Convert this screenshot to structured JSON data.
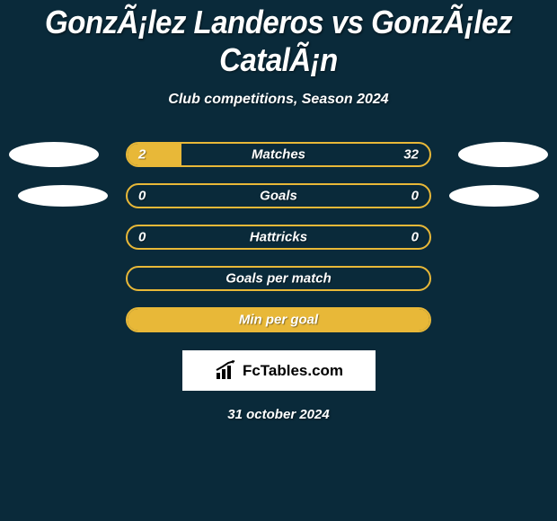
{
  "title": "GonzÃ¡lez Landeros vs GonzÃ¡lez CatalÃ¡n",
  "subtitle": "Club competitions, Season 2024",
  "stats": [
    {
      "label": "Matches",
      "left_value": "2",
      "right_value": "32",
      "left_fill_pct": 18,
      "right_fill_pct": 0,
      "show_left_oval": true,
      "show_right_oval": true,
      "oval_small": false,
      "bar_border": "#e8b838",
      "fill_color": "#e8b838"
    },
    {
      "label": "Goals",
      "left_value": "0",
      "right_value": "0",
      "left_fill_pct": 0,
      "right_fill_pct": 0,
      "show_left_oval": true,
      "show_right_oval": true,
      "oval_small": true,
      "bar_border": "#e8b838",
      "fill_color": "#e8b838"
    },
    {
      "label": "Hattricks",
      "left_value": "0",
      "right_value": "0",
      "left_fill_pct": 0,
      "right_fill_pct": 0,
      "show_left_oval": false,
      "show_right_oval": false,
      "oval_small": false,
      "bar_border": "#e8b838",
      "fill_color": "#e8b838"
    },
    {
      "label": "Goals per match",
      "left_value": "",
      "right_value": "",
      "left_fill_pct": 0,
      "right_fill_pct": 0,
      "show_left_oval": false,
      "show_right_oval": false,
      "oval_small": false,
      "bar_border": "#e8b838",
      "fill_color": "#e8b838"
    },
    {
      "label": "Min per goal",
      "left_value": "",
      "right_value": "",
      "left_fill_pct": 100,
      "right_fill_pct": 0,
      "show_left_oval": false,
      "show_right_oval": false,
      "oval_small": false,
      "bar_border": "#e8b838",
      "fill_color": "#e8b838"
    }
  ],
  "logo_text": "FcTables.com",
  "date": "31 october 2024",
  "colors": {
    "background": "#0a2a3a",
    "accent": "#e8b838",
    "text": "#ffffff"
  }
}
